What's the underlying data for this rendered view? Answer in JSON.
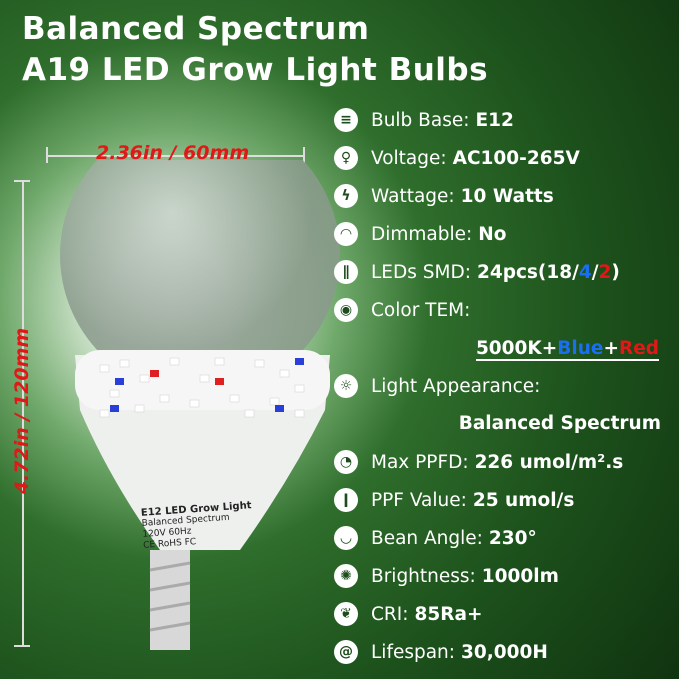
{
  "title": {
    "line1": "Balanced Spectrum",
    "line2": "A19 LED Grow Light Bulbs"
  },
  "dimensions": {
    "width": "2.36in / 60mm",
    "height": "4.72in / 120mm"
  },
  "bulb_label": {
    "line1": "E12 LED Grow Light",
    "line2": "Balanced Spectrum",
    "line3": "120V 60Hz",
    "line4": "CE RoHS FC"
  },
  "specs": [
    {
      "icon": "bulb-base-icon",
      "label": "Bulb Base:",
      "value": "E12"
    },
    {
      "icon": "voltage-bulb-icon",
      "label": "Voltage:",
      "value": "AC100-265V"
    },
    {
      "icon": "lightning-icon",
      "label": "Wattage:",
      "value": "10 Watts"
    },
    {
      "icon": "dimmer-icon",
      "label": "Dimmable:",
      "value": "No"
    },
    {
      "icon": "led-stripes-icon",
      "label": "LEDs SMD:",
      "value": "24pcs(18/",
      "value_blue": "4",
      "slash": "/",
      "value_red": "2",
      "close": ")"
    },
    {
      "icon": "eye-icon",
      "label": "Color TEM:"
    },
    {
      "icon": "light-appearance-icon",
      "label": "Light Appearance:"
    },
    {
      "icon": "gauge-icon",
      "label": "Max PPFD:",
      "value": "226 umol/m².s"
    },
    {
      "icon": "thermometer-icon",
      "label": "PPF Value:",
      "value": "25 umol/s"
    },
    {
      "icon": "beam-angle-icon",
      "label": "Bean Angle:",
      "value": "230°"
    },
    {
      "icon": "sun-icon",
      "label": "Brightness:",
      "value": "1000lm"
    },
    {
      "icon": "leaf-icon",
      "label": "CRI:",
      "value": "85Ra+"
    },
    {
      "icon": "snail-icon",
      "label": "Lifespan:",
      "value": "30,000H"
    }
  ],
  "color_tem": {
    "white": "5000K+",
    "blue": "Blue",
    "plus": "+",
    "red": "Red"
  },
  "light_appearance_value": "Balanced Spectrum",
  "colors": {
    "blue": "#1a6ff0",
    "red": "#e01818",
    "dimension": "#e01818"
  }
}
